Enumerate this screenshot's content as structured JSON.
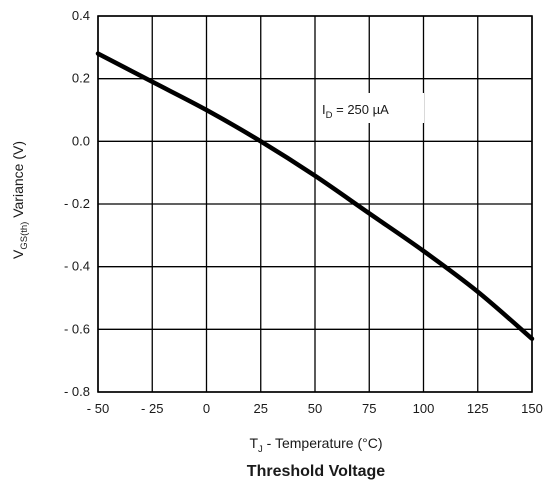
{
  "chart_data": {
    "type": "line",
    "title": "Threshold Voltage",
    "xlabel": {
      "main": "T",
      "sub": "J",
      "rest": " - Temperature (°C)"
    },
    "ylabel": {
      "main": "V",
      "sub": "GS(th)",
      "rest": " Variance (V)"
    },
    "xlim": [
      -50,
      150
    ],
    "ylim": [
      -0.8,
      0.4
    ],
    "x_ticks": [
      -50,
      -25,
      0,
      25,
      50,
      75,
      100,
      125,
      150
    ],
    "x_tick_labels": [
      "- 50",
      "- 25",
      "0",
      "25",
      "50",
      "75",
      "100",
      "125",
      "150"
    ],
    "y_ticks": [
      0.4,
      0.2,
      0.0,
      -0.2,
      -0.4,
      -0.6,
      -0.8
    ],
    "y_tick_labels": [
      "0.4",
      "0.2",
      "0.0",
      "- 0.2",
      "- 0.4",
      "- 0.6",
      "- 0.8"
    ],
    "grid": true,
    "annotation": {
      "main": "I",
      "sub": "D",
      "rest": " = 250 µA"
    },
    "series": [
      {
        "x": [
          -50,
          -25,
          0,
          25,
          50,
          75,
          100,
          125,
          150
        ],
        "y": [
          0.28,
          0.19,
          0.1,
          0.0,
          -0.11,
          -0.23,
          -0.35,
          -0.48,
          -0.63
        ]
      }
    ]
  }
}
